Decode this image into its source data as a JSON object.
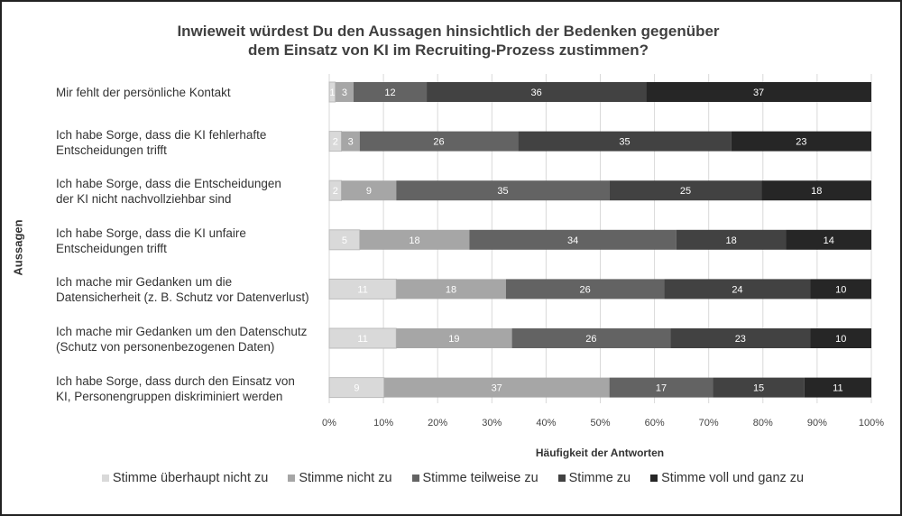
{
  "chart_data": {
    "type": "bar",
    "orientation": "horizontal",
    "stacked": "percent",
    "title": "Inwieweit würdest Du den Aussagen hinsichtlich der Bedenken gegenüber dem Einsatz von KI im Recruiting-Prozess zustimmen?",
    "title_lines": [
      "Inwieweit würdest Du den Aussagen hinsichtlich der Bedenken gegenüber",
      "dem Einsatz von KI im Recruiting-Prozess zustimmen?"
    ],
    "xlabel": "Häufigkeit der Antworten",
    "ylabel": "Aussagen",
    "xlim": [
      0,
      100
    ],
    "xticks": [
      "0%",
      "10%",
      "20%",
      "30%",
      "40%",
      "50%",
      "60%",
      "70%",
      "80%",
      "90%",
      "100%"
    ],
    "grid": true,
    "legend": "bottom",
    "categories": [
      [
        "Mir fehlt der persönliche Kontakt"
      ],
      [
        "Ich habe Sorge, dass die KI fehlerhafte",
        "Entscheidungen trifft"
      ],
      [
        "Ich habe Sorge, dass die Entscheidungen",
        "der KI nicht nachvollziehbar sind"
      ],
      [
        "Ich habe Sorge, dass die KI unfaire",
        "Entscheidungen trifft"
      ],
      [
        "Ich mache mir Gedanken um die",
        "Datensicherheit (z. B. Schutz vor Datenverlust)"
      ],
      [
        "Ich mache mir Gedanken um den Datenschutz",
        "(Schutz von personenbezogenen Daten)"
      ],
      [
        "Ich habe Sorge, dass durch den Einsatz von",
        "KI, Personengruppen diskriminiert werden"
      ]
    ],
    "series": [
      {
        "name": "Stimme überhaupt nicht zu",
        "color": "#d9d9d9",
        "values": [
          1,
          2,
          2,
          5,
          11,
          11,
          9
        ]
      },
      {
        "name": "Stimme nicht zu",
        "color": "#a6a6a6",
        "values": [
          3,
          3,
          9,
          18,
          18,
          19,
          37
        ]
      },
      {
        "name": "Stimme teilweise zu",
        "color": "#636363",
        "values": [
          12,
          26,
          35,
          34,
          26,
          26,
          17
        ]
      },
      {
        "name": "Stimme zu",
        "color": "#424242",
        "values": [
          36,
          35,
          25,
          18,
          24,
          23,
          15
        ]
      },
      {
        "name": "Stimme voll und ganz zu",
        "color": "#262626",
        "values": [
          37,
          23,
          18,
          14,
          10,
          10,
          11
        ]
      }
    ]
  }
}
